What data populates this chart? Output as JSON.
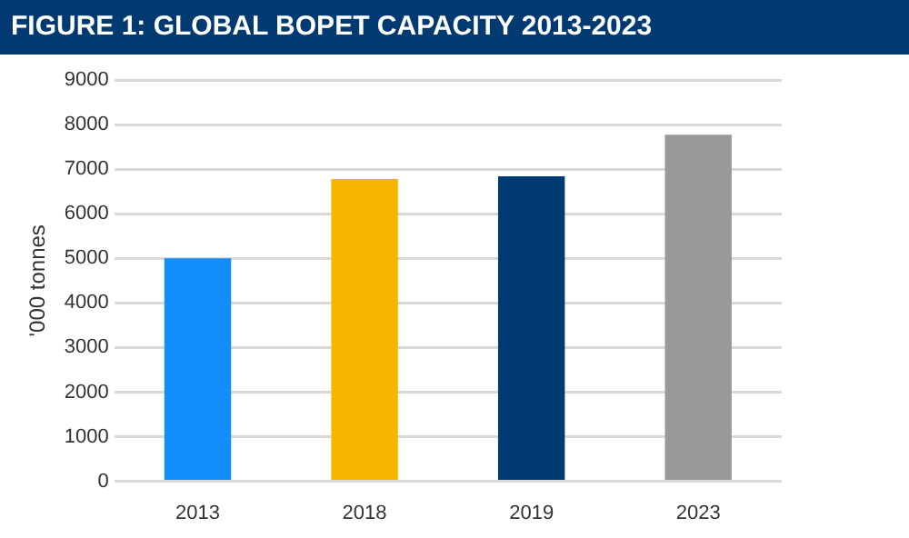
{
  "chart_data": {
    "type": "bar",
    "title": "FIGURE 1:  GLOBAL BOPET CAPACITY 2013-2023",
    "ylabel": "'000 tonnes",
    "categories": [
      "2013",
      "2018",
      "2019",
      "2023"
    ],
    "values": [
      5000,
      6780,
      6840,
      7770
    ],
    "colors": [
      "#138dfc",
      "#f8b500",
      "#003a70",
      "#999999"
    ],
    "ylim": [
      0,
      9000
    ],
    "yticks": [
      0,
      1000,
      2000,
      3000,
      4000,
      5000,
      6000,
      7000,
      8000,
      9000
    ],
    "grid": "y"
  }
}
